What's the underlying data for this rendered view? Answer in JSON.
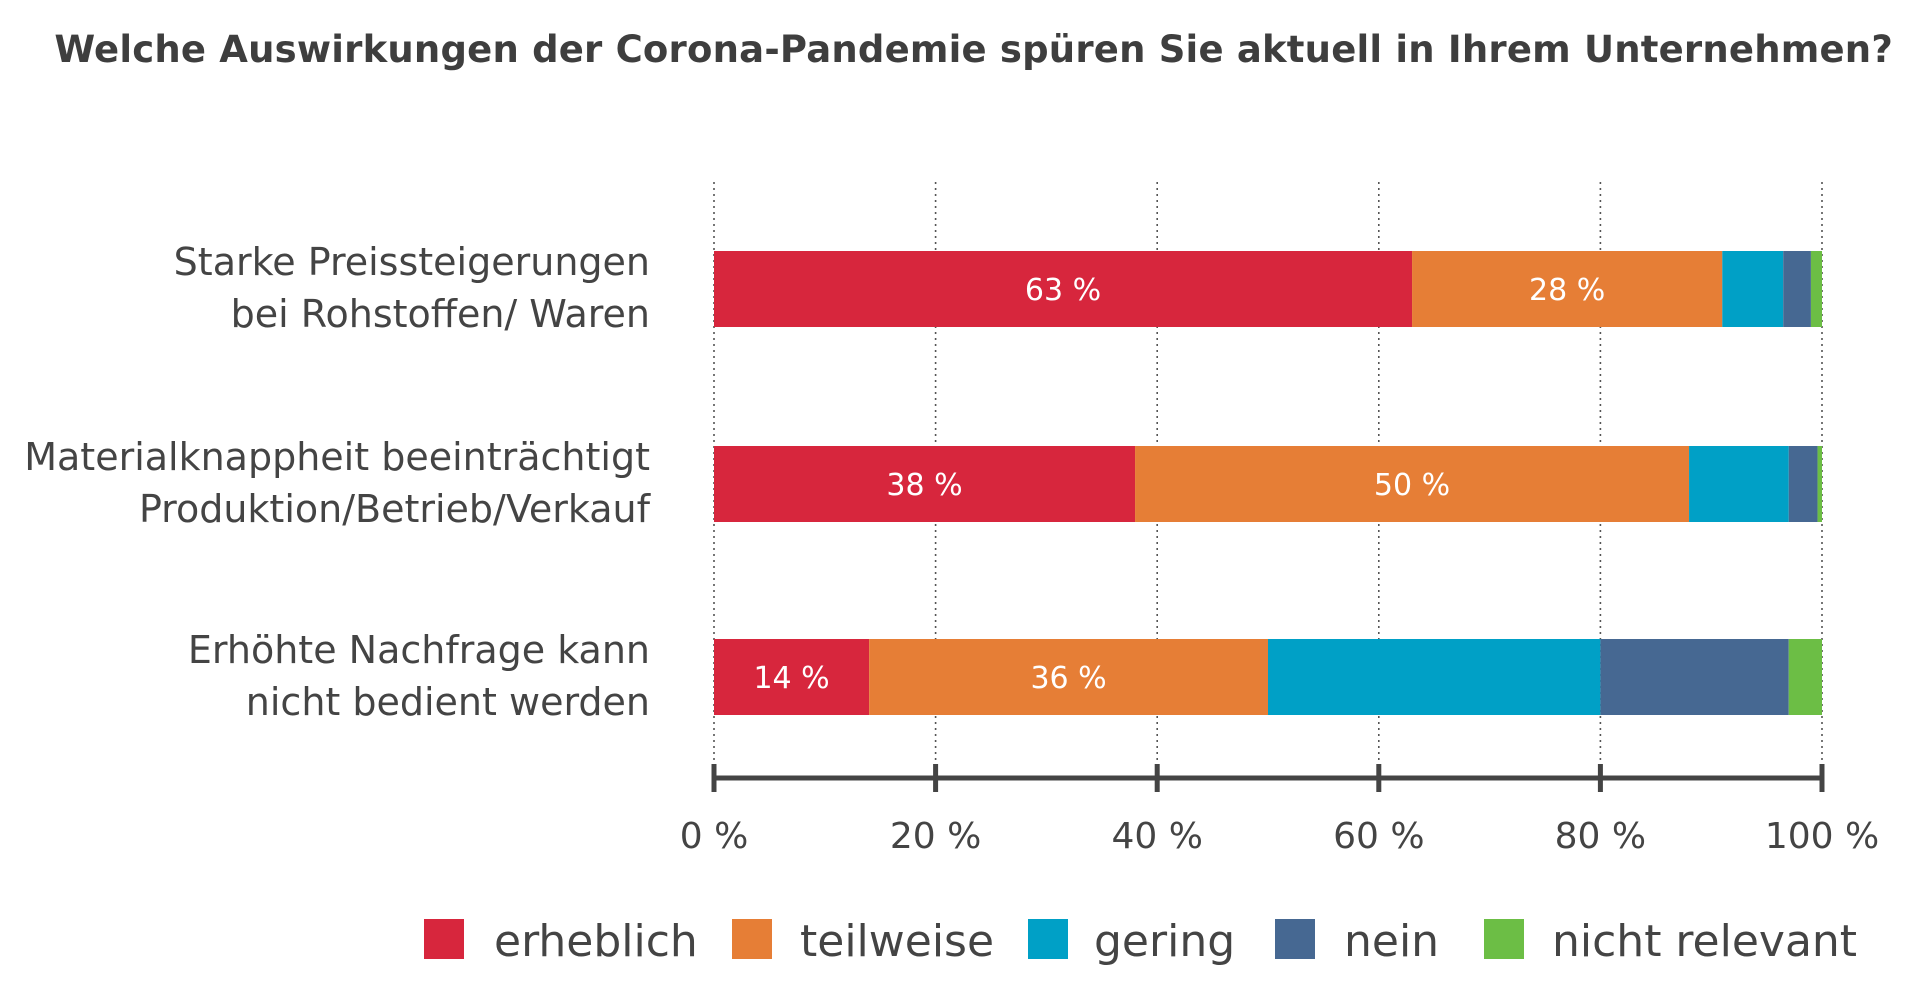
{
  "chart_data": {
    "type": "bar",
    "orientation": "horizontal",
    "stacked": true,
    "title": "Welche Auswirkungen der Corona-Pandemie spüren Sie aktuell in Ihrem Unternehmen?",
    "xlabel": "",
    "ylabel": "",
    "xlim": [
      0,
      100
    ],
    "x_ticks": [
      "0 %",
      "20 %",
      "40 %",
      "60 %",
      "80 %",
      "100 %"
    ],
    "categories": [
      [
        "Starke Preissteigerungen",
        "bei Rohstoffen/ Waren"
      ],
      [
        "Materialknappheit beeinträchtigt",
        "Produktion/Betrieb/Verkauf"
      ],
      [
        "Erhöhte Nachfrage kann",
        "nicht bedient werden"
      ]
    ],
    "series": [
      {
        "name": "erheblich",
        "color": "#d7263d",
        "values": [
          63,
          38,
          14
        ],
        "labels": [
          "63 %",
          "38 %",
          "14 %"
        ]
      },
      {
        "name": "teilweise",
        "color": "#e67e36",
        "values": [
          28,
          50,
          36
        ],
        "labels": [
          "28 %",
          "50 %",
          "36 %"
        ]
      },
      {
        "name": "gering",
        "color": "#00a0c6",
        "values": [
          5.5,
          9,
          30
        ],
        "labels": [
          "",
          "",
          ""
        ]
      },
      {
        "name": "nein",
        "color": "#466892",
        "values": [
          2.5,
          2.6,
          17
        ],
        "labels": [
          "",
          "",
          ""
        ]
      },
      {
        "name": "nicht relevant",
        "color": "#6cbe45",
        "values": [
          1,
          0.4,
          3
        ],
        "labels": [
          "",
          "",
          ""
        ]
      }
    ],
    "grid": true,
    "grid_style": "dotted",
    "legend_position": "bottom"
  }
}
